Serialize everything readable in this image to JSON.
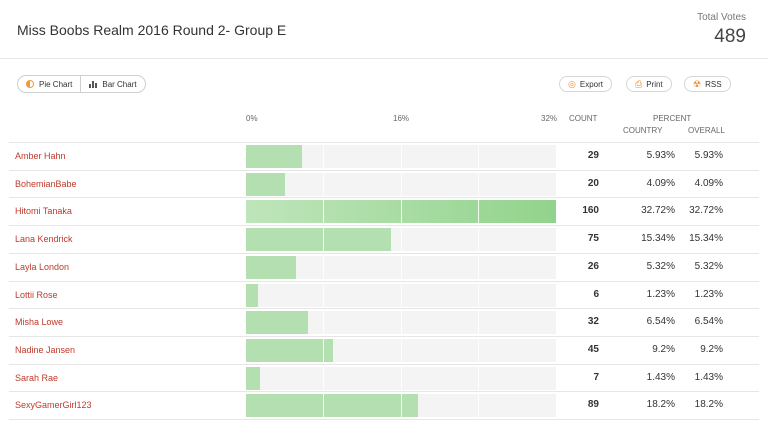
{
  "header": {
    "title": "Miss Boobs Realm 2016 Round 2- Group E",
    "total_label": "Total Votes",
    "total_value": "489"
  },
  "toggle": {
    "pie_label": "Pie Chart",
    "bar_label": "Bar Chart"
  },
  "actions": {
    "export_label": "Export",
    "print_label": "Print",
    "rss_label": "RSS"
  },
  "columns": {
    "axis_0": "0%",
    "axis_16": "16%",
    "axis_32": "32%",
    "count": "COUNT",
    "percent": "PERCENT",
    "country": "COUNTRY",
    "overall": "OVERALL"
  },
  "accent_color": "#f08a24",
  "name_color": "#c0392b",
  "bar_color": "#b4dfb0",
  "rows": [
    {
      "name": "Amber Hahn",
      "count": "29",
      "pct_country": "5.93%",
      "pct_overall": "5.93%",
      "value": 5.93
    },
    {
      "name": "BohemianBabe",
      "count": "20",
      "pct_country": "4.09%",
      "pct_overall": "4.09%",
      "value": 4.09
    },
    {
      "name": "Hitomi Tanaka",
      "count": "160",
      "pct_country": "32.72%",
      "pct_overall": "32.72%",
      "value": 32.72
    },
    {
      "name": "Lana Kendrick",
      "count": "75",
      "pct_country": "15.34%",
      "pct_overall": "15.34%",
      "value": 15.34
    },
    {
      "name": "Layla London",
      "count": "26",
      "pct_country": "5.32%",
      "pct_overall": "5.32%",
      "value": 5.32
    },
    {
      "name": "Lottii Rose",
      "count": "6",
      "pct_country": "1.23%",
      "pct_overall": "1.23%",
      "value": 1.23
    },
    {
      "name": "Misha Lowe",
      "count": "32",
      "pct_country": "6.54%",
      "pct_overall": "6.54%",
      "value": 6.54
    },
    {
      "name": "Nadine Jansen",
      "count": "45",
      "pct_country": "9.2%",
      "pct_overall": "9.2%",
      "value": 9.2
    },
    {
      "name": "Sarah Rae",
      "count": "7",
      "pct_country": "1.43%",
      "pct_overall": "1.43%",
      "value": 1.43
    },
    {
      "name": "SexyGamerGirl123",
      "count": "89",
      "pct_country": "18.2%",
      "pct_overall": "18.2%",
      "value": 18.2
    }
  ],
  "chart_data": {
    "type": "bar",
    "categories": [
      "Amber Hahn",
      "BohemianBabe",
      "Hitomi Tanaka",
      "Lana Kendrick",
      "Layla London",
      "Lottii Rose",
      "Misha Lowe",
      "Nadine Jansen",
      "Sarah Rae",
      "SexyGamerGirl123"
    ],
    "values": [
      5.93,
      4.09,
      32.72,
      15.34,
      5.32,
      1.23,
      6.54,
      9.2,
      1.43,
      18.2
    ],
    "xlim": [
      0,
      32.72
    ],
    "ticks": [
      "0%",
      "16%",
      "32%"
    ]
  }
}
